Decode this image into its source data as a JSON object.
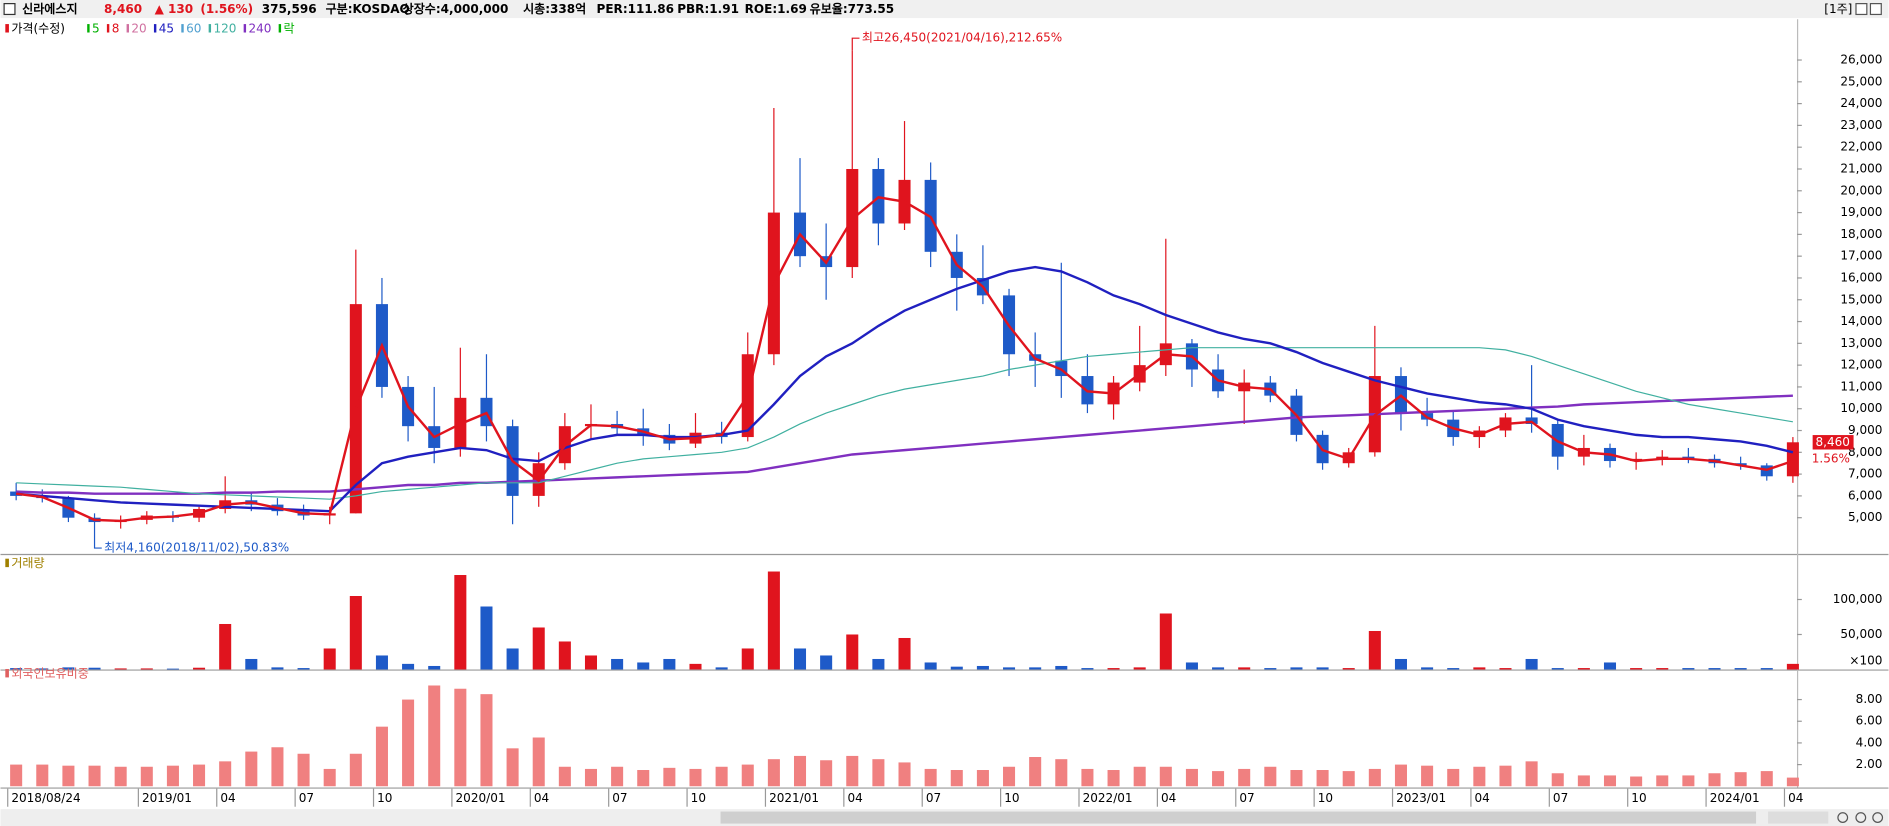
{
  "header": {
    "name": "신라에스지",
    "price": "8,460",
    "change": "▲ 130",
    "change_pct": "(1.56%)",
    "volume": "375,596",
    "market": "구분:KOSDAQ",
    "shares": "상장수:4,000,000",
    "cap": "시총:338억",
    "per": "PER:111.86",
    "pbr": "PBR:1.91",
    "roe": "ROE:1.69",
    "reserve": "유보율:773.55",
    "period": "[1주]"
  },
  "chart_data": [
    {
      "type": "candlestick",
      "legend_title": "가격(수정)",
      "legend": [
        {
          "label": "5",
          "color": "#00b000"
        },
        {
          "label": "8",
          "color": "#e0141e"
        },
        {
          "label": "20",
          "color": "#d070a0"
        },
        {
          "label": "45",
          "color": "#2020c0"
        },
        {
          "label": "60",
          "color": "#50a0d0"
        },
        {
          "label": "120",
          "color": "#40b0a0"
        },
        {
          "label": "240",
          "color": "#8030c0"
        },
        {
          "label": "락",
          "color": "#00b000"
        }
      ],
      "high_note": "최고26,450(2021/04/16),212.65%",
      "low_note": "최저4,160(2018/11/02),50.83%",
      "last_pct": "1.56%",
      "up_color": "#e0141e",
      "down_color": "#1e5ac8",
      "categories": [
        "2018/08/24",
        null,
        null,
        null,
        null,
        "2019/01",
        null,
        null,
        "04",
        null,
        null,
        "07",
        null,
        null,
        "10",
        null,
        null,
        "2020/01",
        null,
        null,
        "04",
        null,
        null,
        "07",
        null,
        null,
        "10",
        null,
        null,
        "2021/01",
        null,
        null,
        "04",
        null,
        null,
        "07",
        null,
        null,
        "10",
        null,
        null,
        "2022/01",
        null,
        null,
        "04",
        null,
        null,
        "07",
        null,
        null,
        "10",
        null,
        null,
        "2023/01",
        null,
        null,
        "04",
        null,
        null,
        "07",
        null,
        null,
        "10",
        null,
        null,
        "2024/01",
        null,
        null,
        "04"
      ],
      "open": [
        6200,
        6000,
        5900,
        5000,
        4800,
        4900,
        5100,
        5000,
        5400,
        5800,
        5600,
        5300,
        5100,
        5200,
        14800,
        11000,
        9200,
        8200,
        10500,
        9200,
        6000,
        7500,
        9200,
        9300,
        9100,
        8800,
        8400,
        8900,
        8700,
        12500,
        19000,
        17000,
        16500,
        21000,
        18500,
        20500,
        17200,
        16000,
        15200,
        12500,
        12200,
        11500,
        10200,
        11200,
        12000,
        13000,
        11800,
        10800,
        11200,
        10600,
        8800,
        7500,
        8000,
        11500,
        9800,
        9500,
        8700,
        9000,
        9600,
        9300,
        7800,
        8200,
        7600,
        7700,
        7800,
        7700,
        7500,
        7400,
        6900
      ],
      "high": [
        6600,
        6300,
        6000,
        5200,
        5100,
        5300,
        5300,
        5500,
        6900,
        6200,
        5900,
        5600,
        5500,
        17300,
        16000,
        11500,
        11000,
        12800,
        12500,
        9500,
        8000,
        9800,
        10200,
        9900,
        10000,
        9300,
        9800,
        9400,
        13500,
        23800,
        21500,
        18500,
        26450,
        21500,
        23200,
        21300,
        18000,
        17500,
        15500,
        13500,
        16700,
        12500,
        11500,
        13800,
        17800,
        13200,
        12500,
        11800,
        11500,
        10900,
        9000,
        8200,
        13800,
        11900,
        10500,
        9900,
        9200,
        9800,
        12000,
        9500,
        8800,
        8400,
        8000,
        8100,
        8200,
        7900,
        7800,
        7500,
        8700
      ],
      "low": [
        5800,
        5700,
        4800,
        4160,
        4500,
        4700,
        4800,
        4800,
        5200,
        5300,
        5100,
        4900,
        4700,
        5200,
        10500,
        8500,
        7500,
        7800,
        8500,
        4700,
        5500,
        7200,
        8600,
        8800,
        8300,
        8100,
        8200,
        8400,
        8500,
        12000,
        16500,
        15000,
        16000,
        17500,
        18200,
        16500,
        14500,
        14800,
        11500,
        11000,
        10500,
        9800,
        9500,
        10800,
        11500,
        11000,
        10500,
        9300,
        10300,
        8500,
        7200,
        7300,
        7800,
        9000,
        9200,
        8300,
        8200,
        8700,
        8900,
        7200,
        7400,
        7300,
        7200,
        7400,
        7500,
        7300,
        7200,
        6700,
        6600
      ],
      "close": [
        6000,
        5900,
        5000,
        4800,
        4900,
        5100,
        5000,
        5400,
        5800,
        5600,
        5300,
        5100,
        5200,
        14800,
        11000,
        9200,
        8200,
        10500,
        9200,
        6000,
        7500,
        9200,
        9300,
        9100,
        8800,
        8400,
        8900,
        8700,
        12500,
        19000,
        17000,
        16500,
        21000,
        18500,
        20500,
        17200,
        16000,
        15200,
        12500,
        12200,
        11500,
        10200,
        11200,
        12000,
        13000,
        11800,
        10800,
        11200,
        10600,
        8800,
        7500,
        8000,
        11500,
        9800,
        9500,
        8700,
        9000,
        9600,
        9300,
        7800,
        8200,
        7600,
        7700,
        7800,
        7700,
        7500,
        7400,
        6900,
        8460
      ],
      "lines": [
        {
          "color": "#8030c0",
          "width": 2,
          "values": [
            6200,
            6150,
            6150,
            6100,
            6100,
            6100,
            6100,
            6100,
            6150,
            6150,
            6200,
            6200,
            6200,
            6300,
            6400,
            6500,
            6500,
            6600,
            6600,
            6650,
            6700,
            6750,
            6800,
            6850,
            6900,
            6950,
            7000,
            7050,
            7100,
            7300,
            7500,
            7700,
            7900,
            8000,
            8100,
            8200,
            8300,
            8400,
            8500,
            8600,
            8700,
            8800,
            8900,
            9000,
            9100,
            9200,
            9300,
            9400,
            9500,
            9600,
            9650,
            9700,
            9750,
            9800,
            9850,
            9900,
            9950,
            10000,
            10050,
            10100,
            10200,
            10250,
            10300,
            10350,
            10400,
            10450,
            10500,
            10550,
            10600
          ]
        },
        {
          "color": "#40b0a0",
          "width": 1,
          "values": [
            6600,
            6550,
            6500,
            6450,
            6400,
            6300,
            6200,
            6100,
            6050,
            6000,
            5950,
            5900,
            5850,
            6000,
            6200,
            6300,
            6400,
            6500,
            6600,
            6600,
            6600,
            6900,
            7200,
            7500,
            7700,
            7800,
            7900,
            8000,
            8200,
            8700,
            9300,
            9800,
            10200,
            10600,
            10900,
            11100,
            11300,
            11500,
            11800,
            12000,
            12200,
            12400,
            12500,
            12600,
            12700,
            12800,
            12800,
            12800,
            12800,
            12800,
            12800,
            12800,
            12800,
            12800,
            12800,
            12800,
            12800,
            12700,
            12400,
            12000,
            11600,
            11200,
            10800,
            10500,
            10200,
            10000,
            9800,
            9600,
            9400
          ]
        },
        {
          "color": "#2020c0",
          "width": 2,
          "values": [
            6100,
            6000,
            5900,
            5800,
            5700,
            5650,
            5600,
            5550,
            5500,
            5450,
            5400,
            5350,
            5300,
            6500,
            7500,
            7800,
            8000,
            8200,
            8100,
            7700,
            7600,
            8200,
            8600,
            8800,
            8800,
            8700,
            8700,
            8800,
            9000,
            10200,
            11500,
            12400,
            13000,
            13800,
            14500,
            15000,
            15500,
            15900,
            16300,
            16500,
            16300,
            15800,
            15200,
            14800,
            14300,
            13900,
            13500,
            13200,
            13000,
            12600,
            12100,
            11700,
            11300,
            11000,
            10700,
            10500,
            10300,
            10200,
            10000,
            9500,
            9200,
            9000,
            8800,
            8700,
            8700,
            8600,
            8500,
            8300,
            8000
          ]
        },
        {
          "color": "#e0141e",
          "width": 2,
          "values": [
            6100,
            5950,
            5450,
            4900,
            4850,
            5000,
            5050,
            5200,
            5600,
            5700,
            5450,
            5200,
            5150,
            10000,
            12900,
            10100,
            8700,
            9300,
            9800,
            7600,
            6700,
            8300,
            9250,
            9200,
            8950,
            8600,
            8650,
            8800,
            10600,
            15700,
            18000,
            16700,
            18700,
            19700,
            19500,
            18800,
            16600,
            15600,
            13800,
            12300,
            11800,
            10800,
            10700,
            11600,
            12500,
            12400,
            11300,
            11000,
            10900,
            9700,
            8100,
            7700,
            9700,
            10600,
            9600,
            9100,
            8800,
            9300,
            9400,
            8500,
            8000,
            7900,
            7600,
            7700,
            7700,
            7600,
            7400,
            7200,
            7600
          ]
        }
      ],
      "ylim": [
        3340,
        27870
      ],
      "yticks": [
        {
          "value": 5000,
          "label": "5,000"
        },
        {
          "value": 6000,
          "label": "6,000"
        },
        {
          "value": 7000,
          "label": "7,000"
        },
        {
          "value": 8000,
          "label": "8,000"
        },
        {
          "value": 9000,
          "label": "9,000"
        },
        {
          "value": 10000,
          "label": "10,000"
        },
        {
          "value": 11000,
          "label": "11,000"
        },
        {
          "value": 12000,
          "label": "12,000"
        },
        {
          "value": 13000,
          "label": "13,000"
        },
        {
          "value": 14000,
          "label": "14,000"
        },
        {
          "value": 15000,
          "label": "15,000"
        },
        {
          "value": 16000,
          "label": "16,000"
        },
        {
          "value": 17000,
          "label": "17,000"
        },
        {
          "value": 18000,
          "label": "18,000"
        },
        {
          "value": 19000,
          "label": "19,000"
        },
        {
          "value": 20000,
          "label": "20,000"
        },
        {
          "value": 21000,
          "label": "21,000"
        },
        {
          "value": 22000,
          "label": "22,000"
        },
        {
          "value": 23000,
          "label": "23,000"
        },
        {
          "value": 24000,
          "label": "24,000"
        },
        {
          "value": 25000,
          "label": "25,000"
        },
        {
          "value": 26000,
          "label": "26,000"
        }
      ]
    },
    {
      "type": "bar",
      "title": "거래량",
      "unit": "×100",
      "title_color": "#a08000",
      "values": [
        2000,
        1500,
        3000,
        2500,
        1500,
        1500,
        1200,
        2500,
        65000,
        15000,
        3000,
        2000,
        30000,
        105000,
        20000,
        8000,
        5000,
        135000,
        90000,
        30000,
        60000,
        40000,
        20000,
        15000,
        10000,
        15000,
        8000,
        3000,
        30000,
        140000,
        30000,
        20000,
        50000,
        15000,
        45000,
        10000,
        4000,
        5000,
        3000,
        3000,
        5000,
        2000,
        2000,
        3000,
        80000,
        10000,
        3000,
        3000,
        2000,
        3000,
        3000,
        2000,
        55000,
        15000,
        3000,
        2000,
        3000,
        2000,
        15000,
        2000,
        2000,
        10000,
        2000,
        2000,
        2000,
        2000,
        2000,
        2000,
        8000
      ],
      "ylim": [
        0,
        148000
      ],
      "yticks": [
        {
          "value": 50000,
          "label": "50,000"
        },
        {
          "value": 100000,
          "label": "100,000"
        }
      ]
    },
    {
      "type": "bar",
      "title": "외국인보유비중",
      "color": "#f08080",
      "title_color": "#e06060",
      "values": [
        2.0,
        2.0,
        1.9,
        1.9,
        1.8,
        1.8,
        1.9,
        2.0,
        2.3,
        3.2,
        3.6,
        3.0,
        1.6,
        3.0,
        5.5,
        8.0,
        9.3,
        9.0,
        8.5,
        3.5,
        4.5,
        1.8,
        1.6,
        1.8,
        1.5,
        1.7,
        1.6,
        1.8,
        2.0,
        2.5,
        2.8,
        2.4,
        2.8,
        2.5,
        2.2,
        1.6,
        1.5,
        1.5,
        1.8,
        2.7,
        2.5,
        1.6,
        1.5,
        1.8,
        1.8,
        1.6,
        1.4,
        1.6,
        1.8,
        1.5,
        1.5,
        1.4,
        1.6,
        2.0,
        1.9,
        1.6,
        1.8,
        1.9,
        2.3,
        1.2,
        1.0,
        1.0,
        0.9,
        1.0,
        1.0,
        1.2,
        1.3,
        1.4,
        0.8
      ],
      "ylim": [
        0,
        10.6
      ],
      "yticks": [
        {
          "value": 2,
          "label": "2.00"
        },
        {
          "value": 4,
          "label": "4.00"
        },
        {
          "value": 6,
          "label": "6.00"
        },
        {
          "value": 8,
          "label": "8.00"
        }
      ]
    }
  ]
}
